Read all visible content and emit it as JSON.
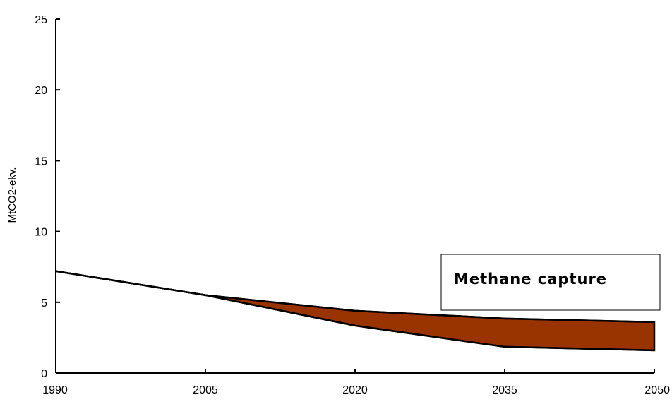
{
  "chart_data": {
    "type": "area",
    "x": [
      1990,
      2005,
      2020,
      2035,
      2050
    ],
    "ylabel": "MtCO2-ekv.",
    "xlabel": "",
    "ylim": [
      0,
      25
    ],
    "yticks": [
      0,
      5,
      10,
      15,
      20,
      25
    ],
    "xticks": [
      1990,
      2005,
      2020,
      2035,
      2050
    ],
    "grid": false,
    "series": [
      {
        "role": "upper",
        "values": [
          7.2,
          5.5,
          4.4,
          3.85,
          3.6
        ]
      },
      {
        "role": "lower",
        "values": [
          7.2,
          5.5,
          3.35,
          1.85,
          1.6
        ]
      }
    ],
    "band_label": "Methane capture",
    "band_color": "#993300",
    "line_color": "#000000",
    "legend_position": "right"
  }
}
